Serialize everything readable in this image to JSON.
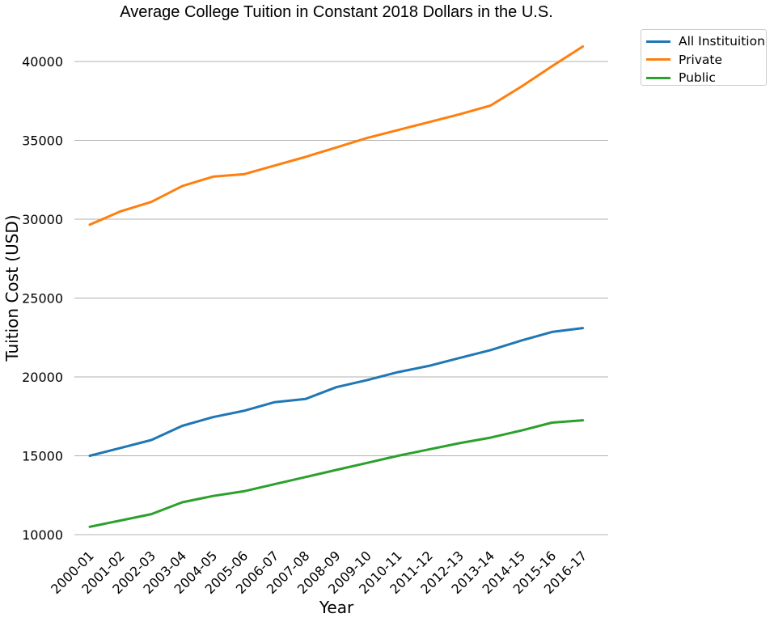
{
  "chart_data": {
    "type": "line",
    "title": "Average College Tuition in Constant 2018 Dollars in the U.S.",
    "xlabel": "Year",
    "ylabel": "Tuition Cost (USD)",
    "categories": [
      "2000-01",
      "2001-02",
      "2002-03",
      "2003-04",
      "2004-05",
      "2005-06",
      "2006-07",
      "2007-08",
      "2008-09",
      "2009-10",
      "2010-11",
      "2011-12",
      "2012-13",
      "2013-14",
      "2014-15",
      "2015-16",
      "2016-17"
    ],
    "series": [
      {
        "name": "All Instituition",
        "color": "#1f77b4",
        "values": [
          15000,
          15500,
          16000,
          16900,
          17450,
          17850,
          18400,
          18600,
          19350,
          19800,
          20300,
          20700,
          21200,
          21700,
          22300,
          22850,
          23100
        ]
      },
      {
        "name": "Private",
        "color": "#ff7f0e",
        "values": [
          29650,
          30500,
          31100,
          32100,
          32700,
          32850,
          33400,
          33950,
          34550,
          35150,
          35650,
          36150,
          36650,
          37200,
          38400,
          39700,
          40950
        ]
      },
      {
        "name": "Public",
        "color": "#2ca02c",
        "values": [
          10500,
          10900,
          11300,
          12050,
          12450,
          12750,
          13200,
          13650,
          14100,
          14550,
          15000,
          15400,
          15800,
          16150,
          16600,
          17100,
          17250
        ]
      }
    ],
    "yticks": [
      10000,
      15000,
      20000,
      25000,
      30000,
      35000,
      40000
    ],
    "ylim": [
      9800,
      42000
    ],
    "grid": "horizontal",
    "legend_position": "outside-top-right"
  }
}
